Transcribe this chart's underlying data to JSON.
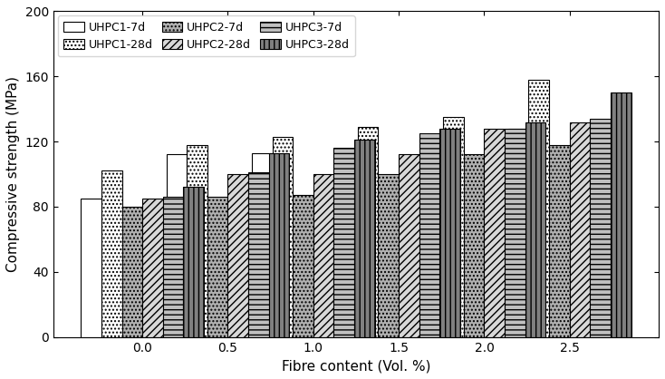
{
  "fibre_contents": [
    0.0,
    0.5,
    1.0,
    1.5,
    2.0,
    2.5
  ],
  "series": {
    "UHPC1-7d": [
      85,
      112,
      113,
      115,
      121,
      128
    ],
    "UHPC1-28d": [
      102,
      118,
      123,
      129,
      135,
      158
    ],
    "UHPC2-7d": [
      80,
      86,
      87,
      100,
      112,
      118
    ],
    "UHPC2-28d": [
      85,
      100,
      100,
      112,
      128,
      132
    ],
    "UHPC3-7d": [
      86,
      101,
      116,
      125,
      128,
      134
    ],
    "UHPC3-28d": [
      92,
      113,
      121,
      128,
      132,
      150
    ]
  },
  "hatch_map": {
    "UHPC1-7d": {
      "fc": "white",
      "hatch": "",
      "ec": "black"
    },
    "UHPC1-28d": {
      "fc": "white",
      "hatch": "....",
      "ec": "black"
    },
    "UHPC2-7d": {
      "fc": "#aaaaaa",
      "hatch": "....",
      "ec": "black"
    },
    "UHPC2-28d": {
      "fc": "#dddddd",
      "hatch": "////",
      "ec": "black"
    },
    "UHPC3-7d": {
      "fc": "#bbbbbb",
      "hatch": "----",
      "ec": "black"
    },
    "UHPC3-28d": {
      "fc": "#888888",
      "hatch": "----",
      "ec": "black"
    }
  },
  "legend_order": [
    "UHPC1-7d",
    "UHPC1-28d",
    "UHPC2-7d",
    "UHPC2-28d",
    "UHPC3-7d",
    "UHPC3-28d"
  ],
  "xlabel": "Fibre content (Vol. %)",
  "ylabel": "Compressive strength (MPa)",
  "ylim": [
    0,
    200
  ],
  "yticks": [
    0,
    40,
    80,
    120,
    160,
    200
  ],
  "bar_width": 0.12,
  "figsize": [
    7.34,
    4.18
  ],
  "dpi": 100
}
